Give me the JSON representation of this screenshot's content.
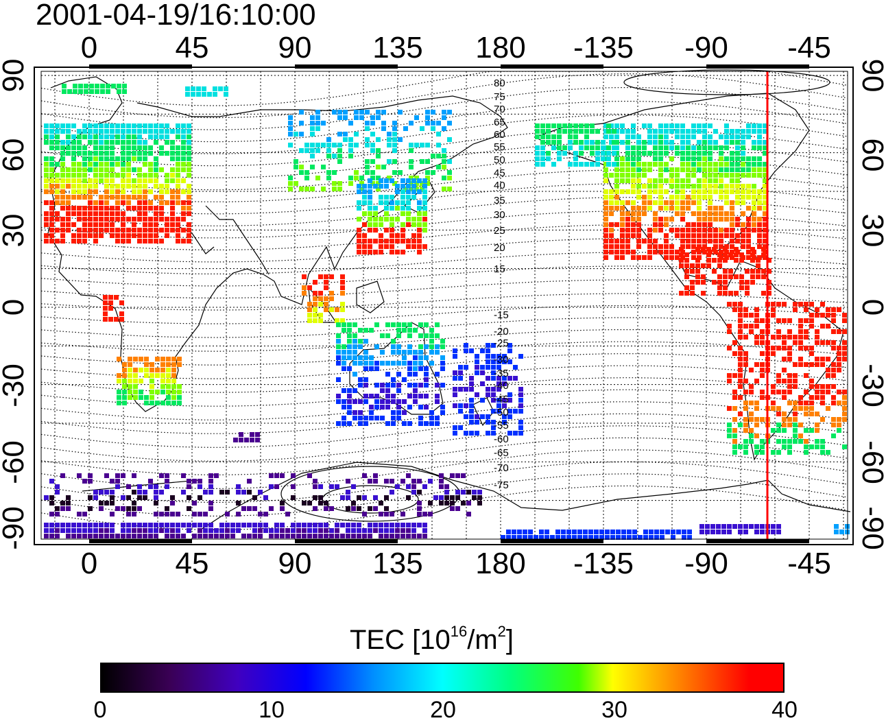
{
  "timestamp": "2001-04-19/16:10:00",
  "map": {
    "top_axis_ticks": [
      "0",
      "45",
      "90",
      "135",
      "180",
      "-135",
      "-90",
      "-45"
    ],
    "bottom_axis_ticks": [
      "0",
      "45",
      "90",
      "135",
      "180",
      "-135",
      "-90",
      "-45"
    ],
    "left_axis_ticks": [
      "90",
      "60",
      "30",
      "0",
      "-30",
      "-60",
      "-90"
    ],
    "right_axis_ticks": [
      "90",
      "60",
      "30",
      "0",
      "-30",
      "-60",
      "-90"
    ],
    "contour_labels": [
      "80",
      "75",
      "70",
      "65",
      "60",
      "55",
      "50",
      "45",
      "40",
      "35",
      "30",
      "25",
      "20",
      "15",
      "-15",
      "-20",
      "-25",
      "-30",
      "-35",
      "-40",
      "-45",
      "-50",
      "-55",
      "-60",
      "-65",
      "-70",
      "-75"
    ],
    "meridian_longitude": -63,
    "meridian_color": "#ff0000"
  },
  "colorbar": {
    "title_prefix": "TEC  [10",
    "title_exp1": "16",
    "title_mid": "/m",
    "title_exp2": "2",
    "title_suffix": "]",
    "ticks": [
      "0",
      "10",
      "20",
      "30",
      "40"
    ],
    "range": [
      0,
      40
    ]
  }
}
